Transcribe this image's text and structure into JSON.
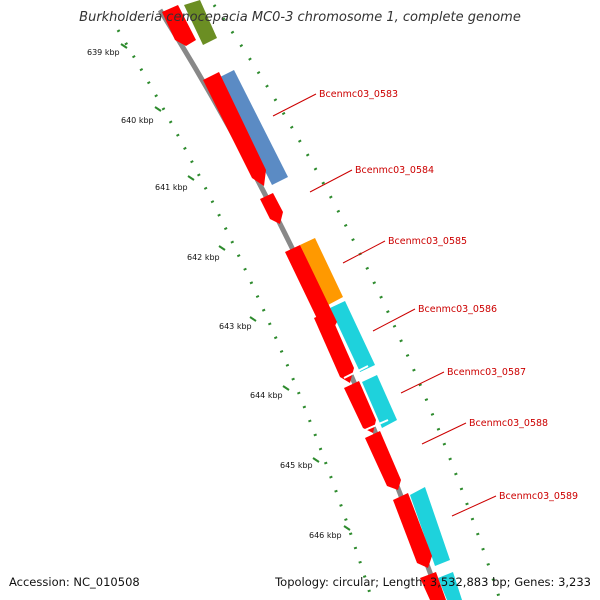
{
  "title": "Burkholderia cenocepacia MC0-3 chromosome 1, complete genome",
  "accession": "Accession: NC_010508",
  "summary": "Topology: circular; Length: 3,532,883 bp; Genes: 3,233",
  "colors": {
    "backbone": "#888888",
    "cds_red": "#ff0000",
    "blue": "#5b8bc4",
    "cyan": "#1ed2dc",
    "orange": "#ff9900",
    "olive": "#6b8e23",
    "tick_green": "#2e8b2e",
    "label_red": "#cc0000"
  },
  "ticks": [
    {
      "label": "639 kbp"
    },
    {
      "label": "640 kbp"
    },
    {
      "label": "641 kbp"
    },
    {
      "label": "642 kbp"
    },
    {
      "label": "643 kbp"
    },
    {
      "label": "644 kbp"
    },
    {
      "label": "645 kbp"
    },
    {
      "label": "646 kbp"
    }
  ],
  "gene_labels": [
    {
      "label": "Bcenmc03_0583"
    },
    {
      "label": "Bcenmc03_0584"
    },
    {
      "label": "Bcenmc03_0585"
    },
    {
      "label": "Bcenmc03_0586"
    },
    {
      "label": "Bcenmc03_0587"
    },
    {
      "label": "Bcenmc03_0588"
    },
    {
      "label": "Bcenmc03_0589"
    }
  ]
}
